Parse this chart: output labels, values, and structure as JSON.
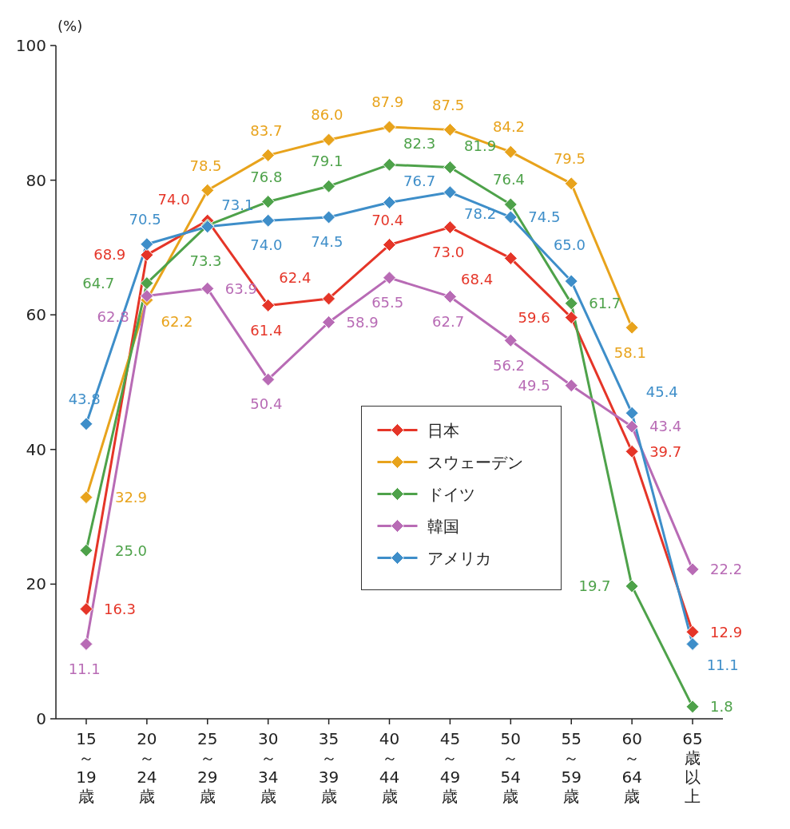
{
  "chart_data": {
    "type": "line",
    "ylabel": "(%)",
    "categories": [
      "15～19歳",
      "20～24歳",
      "25～29歳",
      "30～34歳",
      "35～39歳",
      "40～44歳",
      "45～49歳",
      "50～54歳",
      "55～59歳",
      "60～64歳",
      "65歳以上"
    ],
    "series": [
      {
        "name": "日本",
        "color": "#e53528",
        "values": [
          16.3,
          68.9,
          74.0,
          61.4,
          62.4,
          70.4,
          73.0,
          68.4,
          59.6,
          39.7,
          12.9
        ],
        "value_labels": [
          "16.3",
          "68.9",
          "74.0",
          "61.4",
          "62.4",
          "70.4",
          "73.0",
          "68.4",
          "59.6",
          "39.7",
          "12.9"
        ]
      },
      {
        "name": "スウェーデン",
        "color": "#e8a31c",
        "values": [
          32.9,
          62.2,
          78.5,
          83.7,
          86.0,
          87.9,
          87.5,
          84.2,
          79.5,
          58.1,
          null
        ],
        "value_labels": [
          "32.9",
          "62.2",
          "78.5",
          "83.7",
          "86.0",
          "87.9",
          "87.5",
          "84.2",
          "79.5",
          "58.1",
          null
        ]
      },
      {
        "name": "ドイツ",
        "color": "#4ea24a",
        "values": [
          25.0,
          64.7,
          73.3,
          76.8,
          79.1,
          82.3,
          81.9,
          76.4,
          61.7,
          19.7,
          1.8
        ],
        "value_labels": [
          "25.0",
          "64.7",
          "73.3",
          "76.8",
          "79.1",
          "82.3",
          "81.9",
          "76.4",
          "61.7",
          "19.7",
          "1.8"
        ]
      },
      {
        "name": "韓国",
        "color": "#b86bb5",
        "values": [
          11.1,
          62.8,
          63.9,
          50.4,
          58.9,
          65.5,
          62.7,
          56.2,
          49.5,
          43.4,
          22.2
        ],
        "value_labels": [
          "11.1",
          "62.8",
          "63.9",
          "50.4",
          "58.9",
          "65.5",
          "62.7",
          "56.2",
          "49.5",
          "43.4",
          "22.2"
        ]
      },
      {
        "name": "アメリカ",
        "color": "#3e8ec9",
        "values": [
          43.8,
          70.5,
          73.1,
          74.0,
          74.5,
          76.7,
          78.2,
          74.5,
          65.0,
          45.4,
          11.1
        ],
        "value_labels": [
          "43.8",
          "70.5",
          "73.1",
          "74.0",
          "74.5",
          "76.7",
          "78.2",
          "74.5",
          "65.0",
          "45.4",
          "11.1"
        ]
      }
    ],
    "ylim": [
      0,
      100
    ],
    "yticks": [
      0,
      20,
      40,
      60,
      80,
      100
    ],
    "legend": "center",
    "marker": "diamond"
  }
}
